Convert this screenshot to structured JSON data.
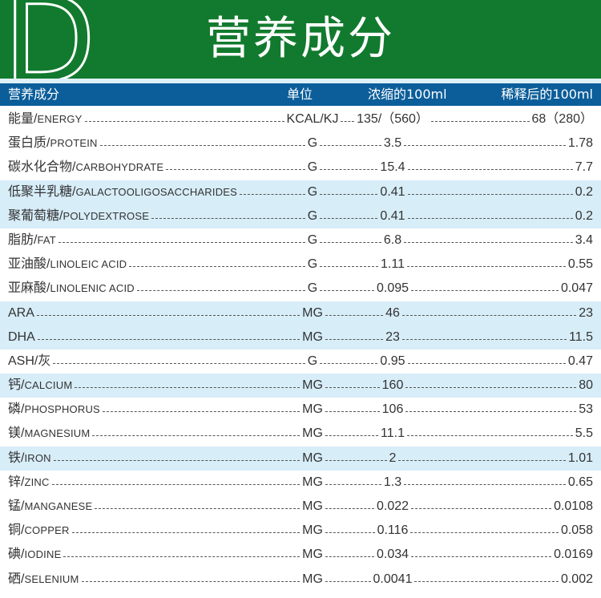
{
  "banner": {
    "letter": "D",
    "title": "营养成分"
  },
  "header": {
    "col_name": "营养成分",
    "col_unit": "单位",
    "col_conc": "浓缩的100ml",
    "col_dil": "稀释后的100ml"
  },
  "rows": [
    {
      "cn": "能量/",
      "en": "ENERGY",
      "unit": "KCAL/KJ",
      "conc": "135/（560）",
      "dil": "68（280）",
      "hl": false
    },
    {
      "cn": "蛋白质/",
      "en": "PROTEIN",
      "unit": "G",
      "conc": "3.5",
      "dil": "1.78",
      "hl": false
    },
    {
      "cn": "碳水化合物/",
      "en": "CARBOHYDRATE",
      "unit": "G",
      "conc": "15.4",
      "dil": "7.7",
      "hl": false
    },
    {
      "cn": "低聚半乳糖/",
      "en": "GALACTOOLIGOSACCHARIDES",
      "unit": "G",
      "conc": "0.41",
      "dil": "0.2",
      "hl": true
    },
    {
      "cn": "聚葡萄糖/",
      "en": "POLYDEXTROSE",
      "unit": "G",
      "conc": "0.41",
      "dil": "0.2",
      "hl": true
    },
    {
      "cn": "脂肪/",
      "en": "FAT",
      "unit": "G",
      "conc": "6.8",
      "dil": "3.4",
      "hl": false
    },
    {
      "cn": "亚油酸/",
      "en": "LINOLEIC ACID",
      "unit": "G",
      "conc": "1.11",
      "dil": "0.55",
      "hl": false
    },
    {
      "cn": "亚麻酸/",
      "en": "LINOLENIC ACID",
      "unit": "G",
      "conc": "0.095",
      "dil": "0.047",
      "hl": false
    },
    {
      "cn": "ARA",
      "en": "",
      "unit": "MG",
      "conc": "46",
      "dil": "23",
      "hl": true
    },
    {
      "cn": "DHA",
      "en": "",
      "unit": "MG",
      "conc": "23",
      "dil": "11.5",
      "hl": true
    },
    {
      "cn": "ASH/灰",
      "en": "",
      "unit": "G",
      "conc": "0.95",
      "dil": "0.47",
      "hl": false
    },
    {
      "cn": "钙/",
      "en": "CALCIUM",
      "unit": "MG",
      "conc": "160",
      "dil": "80",
      "hl": true
    },
    {
      "cn": "磷/",
      "en": "PHOSPHORUS",
      "unit": "MG",
      "conc": "106",
      "dil": "53",
      "hl": false
    },
    {
      "cn": "镁/",
      "en": "MAGNESIUM",
      "unit": "MG",
      "conc": "11.1",
      "dil": "5.5",
      "hl": false
    },
    {
      "cn": "铁/",
      "en": "IRON",
      "unit": "MG",
      "conc": "2",
      "dil": "1.01",
      "hl": true
    },
    {
      "cn": "锌/",
      "en": "ZINC",
      "unit": "MG",
      "conc": "1.3",
      "dil": "0.65",
      "hl": false
    },
    {
      "cn": "锰/",
      "en": "MANGANESE",
      "unit": "MG",
      "conc": "0.022",
      "dil": "0.0108",
      "hl": false
    },
    {
      "cn": "铜/",
      "en": "COPPER",
      "unit": "MG",
      "conc": "0.116",
      "dil": "0.058",
      "hl": false
    },
    {
      "cn": "碘/",
      "en": "IODINE",
      "unit": "MG",
      "conc": "0.034",
      "dil": "0.0169",
      "hl": false
    },
    {
      "cn": "硒/",
      "en": "SELENIUM",
      "unit": "MG",
      "conc": "0.0041",
      "dil": "0.002",
      "hl": false
    }
  ],
  "colors": {
    "banner": "#127a2e",
    "header": "#0b5e9a",
    "highlight": "#d7edf8"
  }
}
